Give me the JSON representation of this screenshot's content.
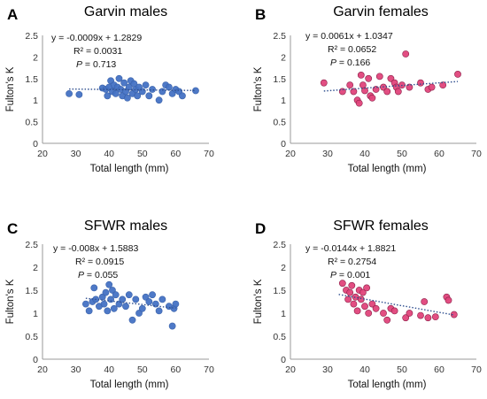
{
  "chart_data": [
    {
      "type": "scatter",
      "letter": "A",
      "title": "Garvin males",
      "xlabel": "Total length (mm)",
      "ylabel": "Fulton's K",
      "xlim": [
        20,
        70
      ],
      "ylim": [
        0,
        2.5
      ],
      "xticks": [
        "20",
        "30",
        "40",
        "50",
        "60",
        "70"
      ],
      "yticks": [
        "0",
        "0.5",
        "1",
        "1.5",
        "2",
        "2.5"
      ],
      "color": "#4472c4",
      "grid": false,
      "stats": {
        "equation": "y = -0.0009x + 1.2829",
        "r2": "R² = 0.0031",
        "p_label": "P",
        "p_value": " = 0.713"
      },
      "trend": {
        "slope": -0.0009,
        "intercept": 1.2829,
        "x_range": [
          28,
          66
        ]
      },
      "points": [
        {
          "x": 28,
          "y": 1.15
        },
        {
          "x": 31,
          "y": 1.13
        },
        {
          "x": 38,
          "y": 1.28
        },
        {
          "x": 39,
          "y": 1.25
        },
        {
          "x": 39.5,
          "y": 1.1
        },
        {
          "x": 40,
          "y": 1.3
        },
        {
          "x": 40.5,
          "y": 1.45
        },
        {
          "x": 41,
          "y": 1.2
        },
        {
          "x": 41.5,
          "y": 1.35
        },
        {
          "x": 42,
          "y": 1.15
        },
        {
          "x": 42.5,
          "y": 1.3
        },
        {
          "x": 43,
          "y": 1.5
        },
        {
          "x": 43.5,
          "y": 1.25
        },
        {
          "x": 44,
          "y": 1.1
        },
        {
          "x": 44.5,
          "y": 1.4
        },
        {
          "x": 45,
          "y": 1.2
        },
        {
          "x": 45.5,
          "y": 1.05
        },
        {
          "x": 46,
          "y": 1.3
        },
        {
          "x": 46.5,
          "y": 1.45
        },
        {
          "x": 47,
          "y": 1.15
        },
        {
          "x": 47.5,
          "y": 1.38
        },
        {
          "x": 48,
          "y": 1.25
        },
        {
          "x": 48.5,
          "y": 1.1
        },
        {
          "x": 49,
          "y": 1.3
        },
        {
          "x": 50,
          "y": 1.2
        },
        {
          "x": 51,
          "y": 1.35
        },
        {
          "x": 52,
          "y": 1.1
        },
        {
          "x": 53,
          "y": 1.25
        },
        {
          "x": 55,
          "y": 1.0
        },
        {
          "x": 56,
          "y": 1.2
        },
        {
          "x": 57,
          "y": 1.35
        },
        {
          "x": 58,
          "y": 1.3
        },
        {
          "x": 59,
          "y": 1.15
        },
        {
          "x": 60,
          "y": 1.25
        },
        {
          "x": 61,
          "y": 1.2
        },
        {
          "x": 62,
          "y": 1.1
        },
        {
          "x": 66,
          "y": 1.22
        }
      ]
    },
    {
      "type": "scatter",
      "letter": "B",
      "title": "Garvin females",
      "xlabel": "Total length (mm)",
      "ylabel": "Fulton's K",
      "xlim": [
        20,
        70
      ],
      "ylim": [
        0,
        2.5
      ],
      "xticks": [
        "20",
        "30",
        "40",
        "50",
        "60",
        "70"
      ],
      "yticks": [
        "0",
        "0.5",
        "1",
        "1.5",
        "2",
        "2.5"
      ],
      "color": "#e0457b",
      "grid": false,
      "stats": {
        "equation": "y = 0.0061x + 1.0347",
        "r2": "R² = 0.0652",
        "p_label": "P",
        "p_value": " = 0.166"
      },
      "trend": {
        "slope": 0.0061,
        "intercept": 1.0347,
        "x_range": [
          29,
          65
        ]
      },
      "points": [
        {
          "x": 29,
          "y": 1.4
        },
        {
          "x": 34,
          "y": 1.2
        },
        {
          "x": 36,
          "y": 1.35
        },
        {
          "x": 37,
          "y": 1.2
        },
        {
          "x": 38,
          "y": 1.0
        },
        {
          "x": 38.5,
          "y": 0.93
        },
        {
          "x": 39,
          "y": 1.58
        },
        {
          "x": 39.5,
          "y": 1.35
        },
        {
          "x": 40,
          "y": 1.22
        },
        {
          "x": 41,
          "y": 1.5
        },
        {
          "x": 41.5,
          "y": 1.1
        },
        {
          "x": 42,
          "y": 1.05
        },
        {
          "x": 43,
          "y": 1.25
        },
        {
          "x": 44,
          "y": 1.55
        },
        {
          "x": 45,
          "y": 1.3
        },
        {
          "x": 46,
          "y": 1.2
        },
        {
          "x": 47,
          "y": 1.5
        },
        {
          "x": 48,
          "y": 1.4
        },
        {
          "x": 48.5,
          "y": 1.3
        },
        {
          "x": 49,
          "y": 1.2
        },
        {
          "x": 50,
          "y": 1.35
        },
        {
          "x": 51,
          "y": 2.07
        },
        {
          "x": 52,
          "y": 1.3
        },
        {
          "x": 55,
          "y": 1.4
        },
        {
          "x": 57,
          "y": 1.25
        },
        {
          "x": 58,
          "y": 1.3
        },
        {
          "x": 61,
          "y": 1.35
        },
        {
          "x": 65,
          "y": 1.6
        }
      ]
    },
    {
      "type": "scatter",
      "letter": "C",
      "title": "SFWR males",
      "xlabel": "Total length (mm)",
      "ylabel": "Fulton's K",
      "xlim": [
        20,
        70
      ],
      "ylim": [
        0,
        2.5
      ],
      "xticks": [
        "20",
        "30",
        "40",
        "50",
        "60",
        "70"
      ],
      "yticks": [
        "0",
        "0.5",
        "1",
        "1.5",
        "2",
        "2.5"
      ],
      "color": "#4472c4",
      "grid": false,
      "stats": {
        "equation": "y = -0.008x + 1.5883",
        "r2": "R² = 0.0915",
        "p_label": "P",
        "p_value": " = 0.055"
      },
      "trend": {
        "slope": -0.008,
        "intercept": 1.5883,
        "x_range": [
          33,
          60
        ]
      },
      "points": [
        {
          "x": 33,
          "y": 1.2
        },
        {
          "x": 34,
          "y": 1.05
        },
        {
          "x": 35,
          "y": 1.25
        },
        {
          "x": 35.5,
          "y": 1.55
        },
        {
          "x": 36,
          "y": 1.3
        },
        {
          "x": 37,
          "y": 1.15
        },
        {
          "x": 38,
          "y": 1.35
        },
        {
          "x": 38.5,
          "y": 1.2
        },
        {
          "x": 39,
          "y": 1.45
        },
        {
          "x": 39.5,
          "y": 1.05
        },
        {
          "x": 40,
          "y": 1.62
        },
        {
          "x": 40.5,
          "y": 1.3
        },
        {
          "x": 41,
          "y": 1.5
        },
        {
          "x": 41.5,
          "y": 1.1
        },
        {
          "x": 42,
          "y": 1.4
        },
        {
          "x": 43,
          "y": 1.2
        },
        {
          "x": 44,
          "y": 1.3
        },
        {
          "x": 45,
          "y": 1.15
        },
        {
          "x": 46,
          "y": 1.4
        },
        {
          "x": 47,
          "y": 0.85
        },
        {
          "x": 48,
          "y": 1.3
        },
        {
          "x": 49,
          "y": 1.0
        },
        {
          "x": 50,
          "y": 1.1
        },
        {
          "x": 51,
          "y": 1.35
        },
        {
          "x": 52,
          "y": 1.25
        },
        {
          "x": 53,
          "y": 1.4
        },
        {
          "x": 54,
          "y": 1.2
        },
        {
          "x": 55,
          "y": 1.05
        },
        {
          "x": 56,
          "y": 1.3
        },
        {
          "x": 58,
          "y": 1.15
        },
        {
          "x": 59,
          "y": 0.72
        },
        {
          "x": 59.5,
          "y": 1.1
        },
        {
          "x": 60,
          "y": 1.2
        }
      ]
    },
    {
      "type": "scatter",
      "letter": "D",
      "title": "SFWR females",
      "xlabel": "Total length (mm)",
      "ylabel": "Fulton's K",
      "xlim": [
        20,
        70
      ],
      "ylim": [
        0,
        2.5
      ],
      "xticks": [
        "20",
        "30",
        "40",
        "50",
        "60",
        "70"
      ],
      "yticks": [
        "0",
        "0.5",
        "1",
        "1.5",
        "2",
        "2.5"
      ],
      "color": "#e0457b",
      "grid": false,
      "stats": {
        "equation": "y = -0.0144x + 1.8821",
        "r2": "R² = 0.2754",
        "p_label": "P",
        "p_value": " = 0.001"
      },
      "trend": {
        "slope": -0.0144,
        "intercept": 1.8821,
        "x_range": [
          33,
          64
        ]
      },
      "points": [
        {
          "x": 34,
          "y": 1.65
        },
        {
          "x": 35,
          "y": 1.5
        },
        {
          "x": 35.5,
          "y": 1.3
        },
        {
          "x": 36,
          "y": 1.45
        },
        {
          "x": 36.5,
          "y": 1.6
        },
        {
          "x": 37,
          "y": 1.2
        },
        {
          "x": 37.5,
          "y": 1.35
        },
        {
          "x": 38,
          "y": 1.05
        },
        {
          "x": 38.5,
          "y": 1.5
        },
        {
          "x": 39,
          "y": 1.3
        },
        {
          "x": 39.5,
          "y": 1.45
        },
        {
          "x": 40,
          "y": 1.15
        },
        {
          "x": 40.5,
          "y": 1.55
        },
        {
          "x": 41,
          "y": 1.0
        },
        {
          "x": 42,
          "y": 1.2
        },
        {
          "x": 43,
          "y": 1.1
        },
        {
          "x": 45,
          "y": 1.0
        },
        {
          "x": 46,
          "y": 0.85
        },
        {
          "x": 47,
          "y": 1.1
        },
        {
          "x": 48,
          "y": 1.05
        },
        {
          "x": 51,
          "y": 0.9
        },
        {
          "x": 52,
          "y": 1.0
        },
        {
          "x": 55,
          "y": 0.95
        },
        {
          "x": 56,
          "y": 1.25
        },
        {
          "x": 57,
          "y": 0.9
        },
        {
          "x": 59,
          "y": 0.92
        },
        {
          "x": 62,
          "y": 1.35
        },
        {
          "x": 62.5,
          "y": 1.28
        },
        {
          "x": 64,
          "y": 0.97
        }
      ]
    }
  ]
}
